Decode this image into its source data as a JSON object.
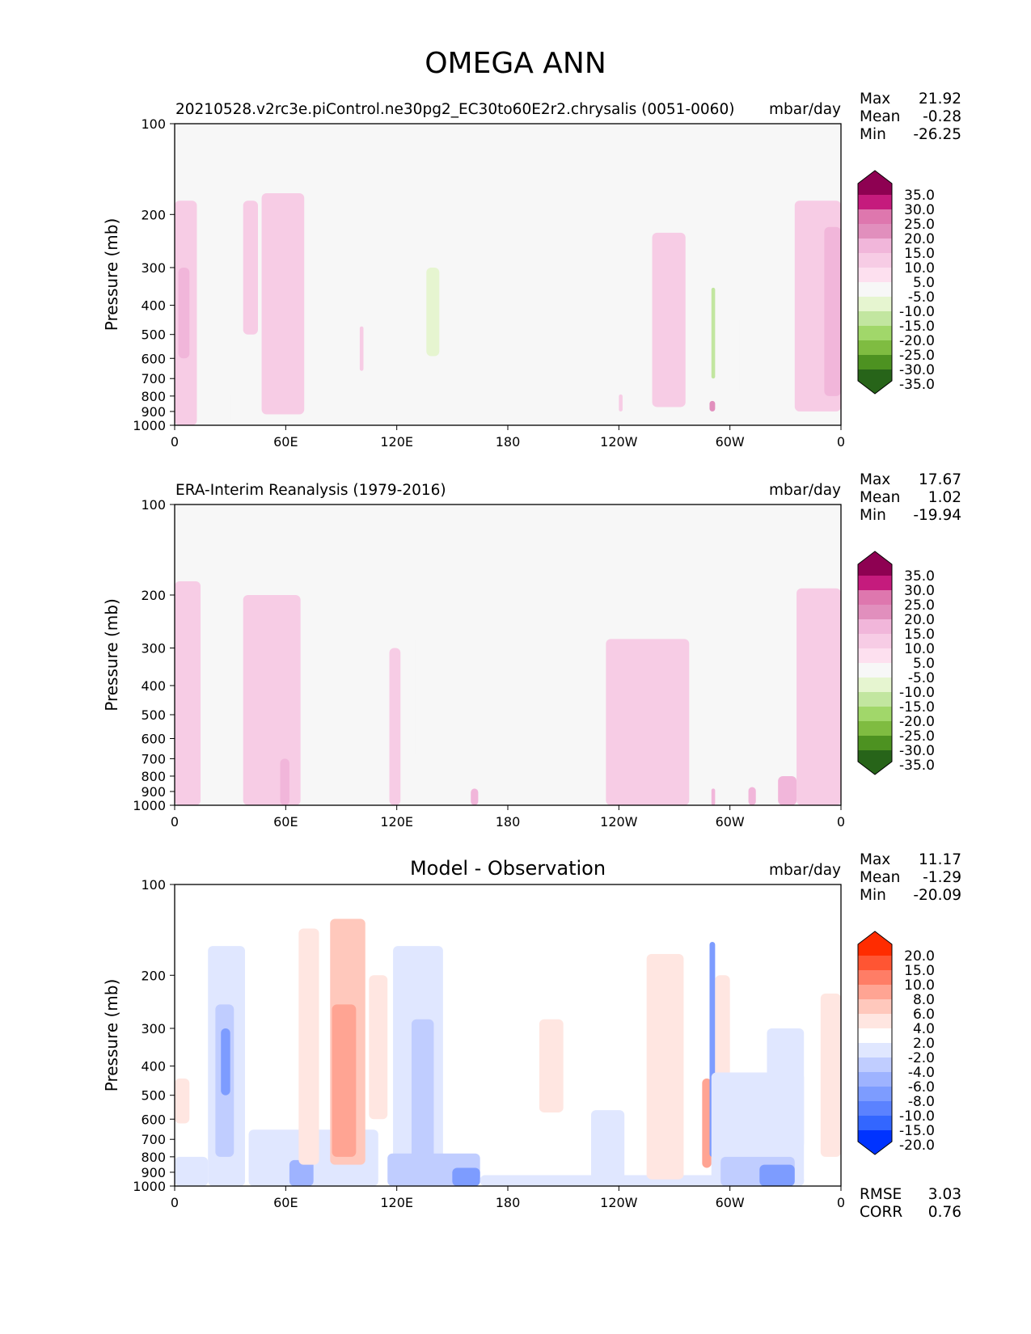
{
  "figure_title": "OMEGA ANN",
  "colors": {
    "omega": [
      "#276419",
      "#4d9221",
      "#7fbc41",
      "#a1d76a",
      "#c2e6a0",
      "#e6f5d0",
      "#f7f7f7",
      "#fde0ef",
      "#f7cce5",
      "#f1b6da",
      "#e18fbd",
      "#de77ae",
      "#c51b7d",
      "#8e0152"
    ],
    "diff": [
      "#0033ff",
      "#3366ff",
      "#5b82ff",
      "#7d9cff",
      "#9eb3ff",
      "#c0cdff",
      "#e0e7ff",
      "#ffffff",
      "#ffe6e1",
      "#ffc8bc",
      "#ffa493",
      "#ff7d66",
      "#ff5533",
      "#ff2c00"
    ]
  },
  "chart_data": [
    {
      "type": "heatmap",
      "title": "20210528.v2rc3e.piControl.ne30pg2_EC30to60E2r2.chrysalis (0051-0060)",
      "units": "mbar/day",
      "ylabel": "Pressure (mb)",
      "xlim": [
        0,
        360
      ],
      "ylim": [
        1000,
        100
      ],
      "ylog": true,
      "xticks": [
        "0",
        "60E",
        "120E",
        "180",
        "120W",
        "60W",
        "0"
      ],
      "yticks": [
        "100",
        "200",
        "300",
        "400",
        "500",
        "600",
        "700",
        "800",
        "900",
        "1000"
      ],
      "stats": {
        "Max": "21.92",
        "Mean": "-0.28",
        "Min": "-26.25"
      },
      "colorbar": [
        "35.0",
        "30.0",
        "25.0",
        "20.0",
        "15.0",
        "10.0",
        "5.0",
        "-5.0",
        "-10.0",
        "-15.0",
        "-20.0",
        "-25.0",
        "-30.0",
        "-35.0"
      ],
      "colormap": "omega",
      "features": [
        {
          "lon": [
            0,
            12
          ],
          "p": [
            180,
            1000
          ],
          "v": 8
        },
        {
          "lon": [
            2,
            8
          ],
          "p": [
            300,
            600
          ],
          "v": 12
        },
        {
          "lon": [
            37,
            45
          ],
          "p": [
            180,
            500
          ],
          "v": 7
        },
        {
          "lon": [
            47,
            70
          ],
          "p": [
            170,
            920
          ],
          "v": 7
        },
        {
          "lon": [
            100,
            102
          ],
          "p": [
            470,
            660
          ],
          "v": 6
        },
        {
          "lon": [
            118,
            148
          ],
          "p": [
            190,
            900
          ],
          "v": -7
        },
        {
          "lon": [
            145,
            182
          ],
          "p": [
            190,
            830
          ],
          "v": -7
        },
        {
          "lon": [
            136,
            143
          ],
          "p": [
            300,
            590
          ],
          "v": -12
        },
        {
          "lon": [
            22,
            28
          ],
          "p": [
            270,
            500
          ],
          "v": -6
        },
        {
          "lon": [
            30,
            43
          ],
          "p": [
            760,
            1000
          ],
          "v": -6
        },
        {
          "lon": [
            258,
            276
          ],
          "p": [
            230,
            870
          ],
          "v": 7
        },
        {
          "lon": [
            240,
            242
          ],
          "p": [
            790,
            900
          ],
          "v": 7
        },
        {
          "lon": [
            289,
            292
          ],
          "p": [
            180,
            960
          ],
          "v": -8
        },
        {
          "lon": [
            290,
            292
          ],
          "p": [
            350,
            700
          ],
          "v": -16
        },
        {
          "lon": [
            289,
            292
          ],
          "p": [
            830,
            900
          ],
          "v": 17
        },
        {
          "lon": [
            283,
            287
          ],
          "p": [
            350,
            750
          ],
          "v": -6
        },
        {
          "lon": [
            305,
            311
          ],
          "p": [
            430,
            800
          ],
          "v": -6
        },
        {
          "lon": [
            335,
            360
          ],
          "p": [
            180,
            900
          ],
          "v": 7
        },
        {
          "lon": [
            351,
            360
          ],
          "p": [
            220,
            800
          ],
          "v": 12
        }
      ]
    },
    {
      "type": "heatmap",
      "title": "ERA-Interim Reanalysis (1979-2016)",
      "units": "mbar/day",
      "ylabel": "Pressure (mb)",
      "xlim": [
        0,
        360
      ],
      "ylim": [
        1000,
        100
      ],
      "ylog": true,
      "xticks": [
        "0",
        "60E",
        "120E",
        "180",
        "120W",
        "60W",
        "0"
      ],
      "yticks": [
        "100",
        "200",
        "300",
        "400",
        "500",
        "600",
        "700",
        "800",
        "900",
        "1000"
      ],
      "stats": {
        "Max": "17.67",
        "Mean": "1.02",
        "Min": "-19.94"
      },
      "colorbar": [
        "35.0",
        "30.0",
        "25.0",
        "20.0",
        "15.0",
        "10.0",
        "5.0",
        "-5.0",
        "-10.0",
        "-15.0",
        "-20.0",
        "-25.0",
        "-30.0",
        "-35.0"
      ],
      "colormap": "omega",
      "features": [
        {
          "lon": [
            0,
            14
          ],
          "p": [
            180,
            1000
          ],
          "v": 7
        },
        {
          "lon": [
            37,
            68
          ],
          "p": [
            200,
            1000
          ],
          "v": 7
        },
        {
          "lon": [
            57,
            62
          ],
          "p": [
            700,
            1000
          ],
          "v": 12
        },
        {
          "lon": [
            91,
            98
          ],
          "p": [
            240,
            780
          ],
          "v": -6
        },
        {
          "lon": [
            116,
            122
          ],
          "p": [
            300,
            1000
          ],
          "v": 7
        },
        {
          "lon": [
            130,
            136
          ],
          "p": [
            270,
            700
          ],
          "v": -6
        },
        {
          "lon": [
            147,
            185
          ],
          "p": [
            200,
            870
          ],
          "v": -7
        },
        {
          "lon": [
            160,
            164
          ],
          "p": [
            880,
            1000
          ],
          "v": 12
        },
        {
          "lon": [
            233,
            278
          ],
          "p": [
            280,
            1000
          ],
          "v": 7
        },
        {
          "lon": [
            284,
            289
          ],
          "p": [
            600,
            920
          ],
          "v": -10
        },
        {
          "lon": [
            286,
            290
          ],
          "p": [
            180,
            600
          ],
          "v": -6
        },
        {
          "lon": [
            290,
            292
          ],
          "p": [
            880,
            1000
          ],
          "v": 12
        },
        {
          "lon": [
            310,
            314
          ],
          "p": [
            870,
            1000
          ],
          "v": 11
        },
        {
          "lon": [
            326,
            336
          ],
          "p": [
            800,
            1000
          ],
          "v": 12
        },
        {
          "lon": [
            336,
            360
          ],
          "p": [
            190,
            1000
          ],
          "v": 7
        }
      ]
    },
    {
      "type": "heatmap",
      "title": "Model - Observation",
      "units": "mbar/day",
      "ylabel": "Pressure (mb)",
      "xlim": [
        0,
        360
      ],
      "ylim": [
        1000,
        100
      ],
      "ylog": true,
      "xticks": [
        "0",
        "60E",
        "120E",
        "180",
        "120W",
        "60W",
        "0"
      ],
      "yticks": [
        "100",
        "200",
        "300",
        "400",
        "500",
        "600",
        "700",
        "800",
        "900",
        "1000"
      ],
      "stats": {
        "Max": "11.17",
        "Mean": "-1.29",
        "Min": "-20.09"
      },
      "colorbar": [
        "20.0",
        "15.0",
        "10.0",
        "8.0",
        "6.0",
        "4.0",
        "2.0",
        "-2.0",
        "-4.0",
        "-6.0",
        "-8.0",
        "-10.0",
        "-15.0",
        "-20.0"
      ],
      "colormap": "diff",
      "metrics": {
        "RMSE": "3.03",
        "CORR": "0.76"
      },
      "features": [
        {
          "lon": [
            18,
            38
          ],
          "p": [
            160,
            1000
          ],
          "v": -3
        },
        {
          "lon": [
            22,
            32
          ],
          "p": [
            250,
            800
          ],
          "v": -6
        },
        {
          "lon": [
            25,
            30
          ],
          "p": [
            300,
            500
          ],
          "v": -9
        },
        {
          "lon": [
            0,
            18
          ],
          "p": [
            800,
            1000
          ],
          "v": -3
        },
        {
          "lon": [
            40,
            110
          ],
          "p": [
            650,
            1000
          ],
          "v": -4
        },
        {
          "lon": [
            62,
            75
          ],
          "p": [
            820,
            1000
          ],
          "v": -8
        },
        {
          "lon": [
            0,
            8
          ],
          "p": [
            440,
            620
          ],
          "v": 3
        },
        {
          "lon": [
            67,
            78
          ],
          "p": [
            140,
            850
          ],
          "v": 3
        },
        {
          "lon": [
            84,
            103
          ],
          "p": [
            130,
            850
          ],
          "v": 5
        },
        {
          "lon": [
            85,
            98
          ],
          "p": [
            250,
            800
          ],
          "v": 7
        },
        {
          "lon": [
            105,
            115
          ],
          "p": [
            200,
            600
          ],
          "v": 3
        },
        {
          "lon": [
            118,
            145
          ],
          "p": [
            160,
            1000
          ],
          "v": -3
        },
        {
          "lon": [
            128,
            140
          ],
          "p": [
            280,
            1000
          ],
          "v": -5
        },
        {
          "lon": [
            115,
            165
          ],
          "p": [
            780,
            1000
          ],
          "v": -5
        },
        {
          "lon": [
            150,
            165
          ],
          "p": [
            870,
            1000
          ],
          "v": -9
        },
        {
          "lon": [
            165,
            340
          ],
          "p": [
            920,
            1000
          ],
          "v": -3
        },
        {
          "lon": [
            197,
            210
          ],
          "p": [
            280,
            570
          ],
          "v": 3
        },
        {
          "lon": [
            225,
            243
          ],
          "p": [
            560,
            1000
          ],
          "v": -3
        },
        {
          "lon": [
            255,
            275
          ],
          "p": [
            170,
            950
          ],
          "v": 3
        },
        {
          "lon": [
            285,
            290
          ],
          "p": [
            440,
            870
          ],
          "v": 6
        },
        {
          "lon": [
            289,
            292
          ],
          "p": [
            155,
            800
          ],
          "v": -10
        },
        {
          "lon": [
            292,
            300
          ],
          "p": [
            200,
            600
          ],
          "v": 3
        },
        {
          "lon": [
            290,
            340
          ],
          "p": [
            420,
            1000
          ],
          "v": -3
        },
        {
          "lon": [
            295,
            335
          ],
          "p": [
            800,
            1000
          ],
          "v": -6
        },
        {
          "lon": [
            316,
            335
          ],
          "p": [
            850,
            1000
          ],
          "v": -10
        },
        {
          "lon": [
            320,
            340
          ],
          "p": [
            300,
            750
          ],
          "v": -3
        },
        {
          "lon": [
            349,
            360
          ],
          "p": [
            230,
            800
          ],
          "v": 3
        }
      ]
    }
  ]
}
